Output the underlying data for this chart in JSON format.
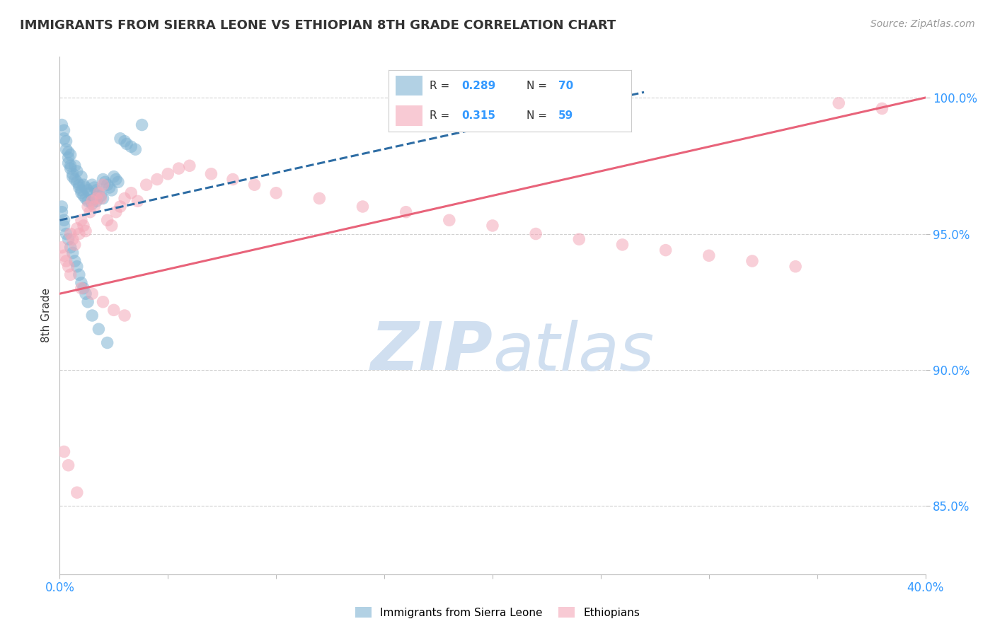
{
  "title": "IMMIGRANTS FROM SIERRA LEONE VS ETHIOPIAN 8TH GRADE CORRELATION CHART",
  "source_text": "Source: ZipAtlas.com",
  "ylabel": "8th Grade",
  "watermark": "ZIPatlas",
  "xmin": 0.0,
  "xmax": 0.4,
  "ymin": 0.825,
  "ymax": 1.015,
  "blue_color": "#7FB3D3",
  "pink_color": "#F4A8B8",
  "blue_line_color": "#2E6DA4",
  "pink_line_color": "#E8637A",
  "grid_color": "#CCCCCC",
  "bg_color": "#FFFFFF",
  "title_color": "#333333",
  "axis_color": "#3399FF",
  "watermark_color": "#D0DFF0",
  "legend_R_blue": "0.289",
  "legend_N_blue": "70",
  "legend_R_pink": "0.315",
  "legend_N_pink": "59",
  "sl_x": [
    0.001,
    0.002,
    0.002,
    0.003,
    0.003,
    0.004,
    0.004,
    0.004,
    0.005,
    0.005,
    0.005,
    0.006,
    0.006,
    0.007,
    0.007,
    0.008,
    0.008,
    0.009,
    0.009,
    0.01,
    0.01,
    0.01,
    0.011,
    0.011,
    0.012,
    0.012,
    0.013,
    0.013,
    0.014,
    0.015,
    0.015,
    0.016,
    0.016,
    0.017,
    0.017,
    0.018,
    0.019,
    0.02,
    0.02,
    0.021,
    0.022,
    0.023,
    0.024,
    0.025,
    0.026,
    0.027,
    0.028,
    0.03,
    0.031,
    0.033,
    0.035,
    0.038,
    0.001,
    0.001,
    0.002,
    0.002,
    0.003,
    0.004,
    0.005,
    0.006,
    0.007,
    0.008,
    0.009,
    0.01,
    0.011,
    0.012,
    0.013,
    0.015,
    0.018,
    0.022
  ],
  "sl_y": [
    0.99,
    0.988,
    0.985,
    0.984,
    0.981,
    0.98,
    0.978,
    0.976,
    0.979,
    0.975,
    0.974,
    0.972,
    0.971,
    0.975,
    0.97,
    0.973,
    0.969,
    0.968,
    0.967,
    0.971,
    0.966,
    0.965,
    0.968,
    0.964,
    0.967,
    0.963,
    0.966,
    0.962,
    0.965,
    0.968,
    0.961,
    0.967,
    0.963,
    0.966,
    0.962,
    0.965,
    0.964,
    0.97,
    0.963,
    0.969,
    0.968,
    0.967,
    0.966,
    0.971,
    0.97,
    0.969,
    0.985,
    0.984,
    0.983,
    0.982,
    0.981,
    0.99,
    0.96,
    0.958,
    0.955,
    0.953,
    0.95,
    0.948,
    0.945,
    0.943,
    0.94,
    0.938,
    0.935,
    0.932,
    0.93,
    0.928,
    0.925,
    0.92,
    0.915,
    0.91
  ],
  "eth_x": [
    0.001,
    0.002,
    0.003,
    0.004,
    0.005,
    0.006,
    0.007,
    0.008,
    0.009,
    0.01,
    0.011,
    0.012,
    0.013,
    0.014,
    0.015,
    0.016,
    0.017,
    0.018,
    0.019,
    0.02,
    0.022,
    0.024,
    0.026,
    0.028,
    0.03,
    0.033,
    0.036,
    0.04,
    0.045,
    0.05,
    0.055,
    0.06,
    0.07,
    0.08,
    0.09,
    0.1,
    0.12,
    0.14,
    0.16,
    0.18,
    0.2,
    0.22,
    0.24,
    0.26,
    0.28,
    0.3,
    0.32,
    0.34,
    0.36,
    0.38,
    0.005,
    0.01,
    0.015,
    0.02,
    0.025,
    0.03,
    0.002,
    0.004,
    0.008
  ],
  "eth_y": [
    0.945,
    0.942,
    0.94,
    0.938,
    0.95,
    0.948,
    0.946,
    0.952,
    0.95,
    0.955,
    0.953,
    0.951,
    0.96,
    0.958,
    0.962,
    0.96,
    0.963,
    0.965,
    0.963,
    0.968,
    0.955,
    0.953,
    0.958,
    0.96,
    0.963,
    0.965,
    0.962,
    0.968,
    0.97,
    0.972,
    0.974,
    0.975,
    0.972,
    0.97,
    0.968,
    0.965,
    0.963,
    0.96,
    0.958,
    0.955,
    0.953,
    0.95,
    0.948,
    0.946,
    0.944,
    0.942,
    0.94,
    0.938,
    0.998,
    0.996,
    0.935,
    0.93,
    0.928,
    0.925,
    0.922,
    0.92,
    0.87,
    0.865,
    0.855
  ],
  "sl_line_x": [
    0.0,
    0.27
  ],
  "sl_line_y": [
    0.955,
    1.002
  ],
  "eth_line_x": [
    0.0,
    0.4
  ],
  "eth_line_y": [
    0.928,
    1.0
  ]
}
